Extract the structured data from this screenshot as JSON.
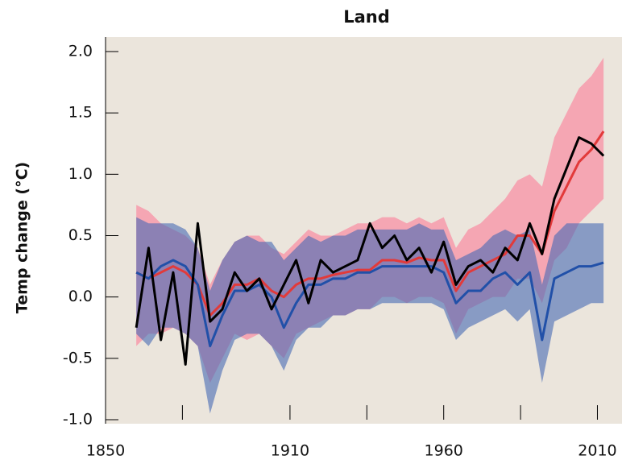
{
  "chart_data": {
    "type": "line",
    "title": "Land",
    "y_label": "Temp change (°C)",
    "x": [
      1860,
      1864,
      1868,
      1872,
      1876,
      1880,
      1884,
      1888,
      1892,
      1896,
      1900,
      1904,
      1908,
      1912,
      1916,
      1920,
      1924,
      1928,
      1932,
      1936,
      1940,
      1944,
      1948,
      1952,
      1956,
      1960,
      1964,
      1968,
      1972,
      1976,
      1980,
      1984,
      1988,
      1992,
      1996,
      2000,
      2004,
      2008,
      2012
    ],
    "bands": [
      {
        "color": "#f5a6b3",
        "upper": [
          0.75,
          0.7,
          0.6,
          0.55,
          0.5,
          0.4,
          0.1,
          0.3,
          0.45,
          0.5,
          0.5,
          0.4,
          0.35,
          0.45,
          0.55,
          0.5,
          0.5,
          0.55,
          0.6,
          0.6,
          0.65,
          0.65,
          0.6,
          0.65,
          0.6,
          0.65,
          0.4,
          0.55,
          0.6,
          0.7,
          0.8,
          0.95,
          1.0,
          0.9,
          1.3,
          1.5,
          1.7,
          1.8,
          1.95
        ],
        "lower": [
          -0.4,
          -0.3,
          -0.3,
          -0.25,
          -0.3,
          -0.4,
          -0.7,
          -0.5,
          -0.3,
          -0.35,
          -0.3,
          -0.4,
          -0.5,
          -0.3,
          -0.25,
          -0.2,
          -0.15,
          -0.15,
          -0.1,
          -0.1,
          0.0,
          0.0,
          -0.05,
          0.0,
          0.0,
          -0.05,
          -0.3,
          -0.1,
          -0.05,
          0.0,
          0.0,
          0.15,
          0.15,
          -0.05,
          0.3,
          0.4,
          0.6,
          0.7,
          0.8
        ]
      },
      {
        "color": "rgba(70,105,180,0.6)",
        "upper": [
          0.65,
          0.6,
          0.6,
          0.6,
          0.55,
          0.4,
          0.05,
          0.3,
          0.45,
          0.5,
          0.45,
          0.45,
          0.3,
          0.4,
          0.5,
          0.45,
          0.5,
          0.5,
          0.55,
          0.55,
          0.55,
          0.55,
          0.55,
          0.6,
          0.55,
          0.55,
          0.3,
          0.35,
          0.4,
          0.5,
          0.55,
          0.5,
          0.55,
          0.1,
          0.5,
          0.6,
          0.6,
          0.6,
          0.6
        ],
        "lower": [
          -0.3,
          -0.4,
          -0.25,
          -0.25,
          -0.3,
          -0.4,
          -0.95,
          -0.6,
          -0.35,
          -0.3,
          -0.3,
          -0.4,
          -0.6,
          -0.35,
          -0.25,
          -0.25,
          -0.15,
          -0.15,
          -0.1,
          -0.1,
          -0.05,
          -0.05,
          -0.05,
          -0.05,
          -0.05,
          -0.1,
          -0.35,
          -0.25,
          -0.2,
          -0.15,
          -0.1,
          -0.2,
          -0.1,
          -0.7,
          -0.2,
          -0.15,
          -0.1,
          -0.05,
          -0.05
        ]
      }
    ],
    "series": [
      {
        "color": "#e23a3a",
        "values": [
          0.2,
          0.15,
          0.2,
          0.25,
          0.2,
          0.1,
          -0.15,
          -0.05,
          0.1,
          0.1,
          0.15,
          0.05,
          0.0,
          0.1,
          0.15,
          0.15,
          0.18,
          0.2,
          0.22,
          0.22,
          0.3,
          0.3,
          0.28,
          0.32,
          0.3,
          0.3,
          0.05,
          0.2,
          0.25,
          0.3,
          0.35,
          0.5,
          0.5,
          0.35,
          0.7,
          0.9,
          1.1,
          1.2,
          1.35
        ]
      },
      {
        "color": "#2150a8",
        "values": [
          0.2,
          0.15,
          0.25,
          0.3,
          0.25,
          0.1,
          -0.4,
          -0.15,
          0.05,
          0.05,
          0.1,
          0.0,
          -0.25,
          -0.05,
          0.1,
          0.1,
          0.15,
          0.15,
          0.2,
          0.2,
          0.25,
          0.25,
          0.25,
          0.25,
          0.25,
          0.2,
          -0.05,
          0.05,
          0.05,
          0.15,
          0.2,
          0.1,
          0.2,
          -0.35,
          0.15,
          0.2,
          0.25,
          0.25,
          0.28
        ]
      },
      {
        "color": "#000000",
        "values": [
          -0.25,
          0.4,
          -0.35,
          0.2,
          -0.55,
          0.6,
          -0.2,
          -0.1,
          0.2,
          0.05,
          0.15,
          -0.1,
          0.1,
          0.3,
          -0.05,
          0.3,
          0.2,
          0.25,
          0.3,
          0.6,
          0.4,
          0.5,
          0.3,
          0.4,
          0.2,
          0.45,
          0.1,
          0.25,
          0.3,
          0.2,
          0.4,
          0.3,
          0.6,
          0.35,
          0.8,
          1.05,
          1.3,
          1.25,
          1.15
        ]
      }
    ],
    "xlim": [
      1850,
      2018
    ],
    "xticks": [
      1850,
      1910,
      1960,
      2010
    ],
    "xminorticks": [
      1875,
      1910,
      1935,
      1960,
      1985,
      2010
    ],
    "ylim": [
      -1,
      2
    ],
    "yticks": [
      {
        "value": -1,
        "label": "-1.0"
      },
      -0.5,
      {
        "value": 0,
        "label": "0.0"
      },
      0.5,
      {
        "value": 1,
        "label": "1.0"
      },
      1.5,
      {
        "value": 2,
        "label": "2.0"
      }
    ],
    "background": "#ebe5dc"
  }
}
